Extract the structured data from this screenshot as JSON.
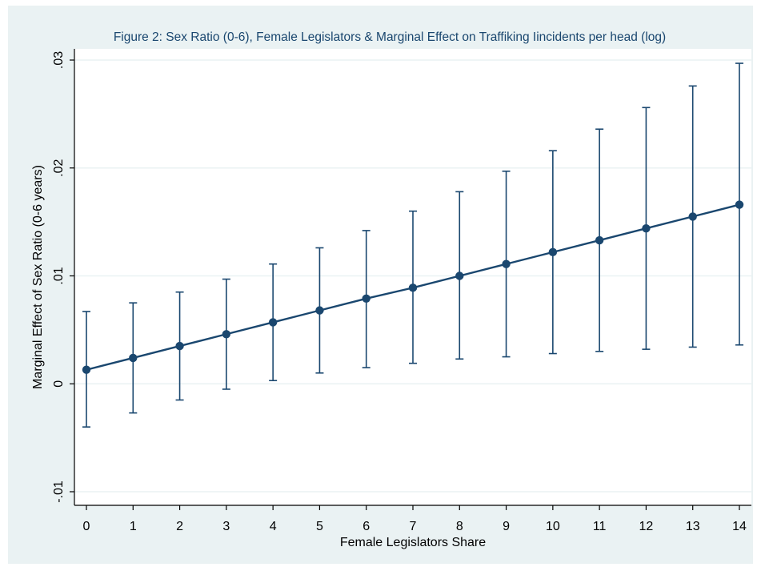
{
  "chart_data": {
    "type": "line",
    "title": "Figure 2: Sex Ratio (0-6), Female Legislators & Marginal Effect on Traffiking Iincidents per head (log)",
    "xlabel": "Female Legislators Share",
    "ylabel": "Marginal Effect of Sex Ratio (0-6 years)",
    "xlim": [
      0,
      14
    ],
    "ylim": [
      -0.01,
      0.03
    ],
    "x_ticks": [
      0,
      1,
      2,
      3,
      4,
      5,
      6,
      7,
      8,
      9,
      10,
      11,
      12,
      13,
      14
    ],
    "x_tick_labels": [
      "0",
      "1",
      "2",
      "3",
      "4",
      "5",
      "6",
      "7",
      "8",
      "9",
      "10",
      "11",
      "12",
      "13",
      "14"
    ],
    "y_ticks": [
      -0.01,
      0,
      0.01,
      0.02,
      0.03
    ],
    "y_tick_labels": [
      "-.01",
      "0",
      ".01",
      ".02",
      ".03"
    ],
    "grid": true,
    "legend": "none",
    "x": [
      0,
      1,
      2,
      3,
      4,
      5,
      6,
      7,
      8,
      9,
      10,
      11,
      12,
      13,
      14
    ],
    "series": [
      {
        "values": [
          0.0013,
          0.0024,
          0.0035,
          0.0046,
          0.0057,
          0.0068,
          0.0079,
          0.0089,
          0.01,
          0.0111,
          0.0122,
          0.0133,
          0.0144,
          0.0155,
          0.0166
        ],
        "ci_upper": [
          0.0067,
          0.0075,
          0.0085,
          0.0097,
          0.0111,
          0.0126,
          0.0142,
          0.016,
          0.0178,
          0.0197,
          0.0216,
          0.0236,
          0.0256,
          0.0276,
          0.0297
        ],
        "ci_lower": [
          -0.004,
          -0.0027,
          -0.0015,
          -0.0005,
          0.0003,
          0.001,
          0.0015,
          0.0019,
          0.0023,
          0.0025,
          0.0028,
          0.003,
          0.0032,
          0.0034,
          0.0036
        ]
      }
    ],
    "colors": {
      "outer_background": "#eaf2f3",
      "plot_background": "#ffffff",
      "gridline": "#eaf2f3",
      "series": "#1a476f",
      "axis": "#000000",
      "title_text": "#1a476f"
    }
  }
}
